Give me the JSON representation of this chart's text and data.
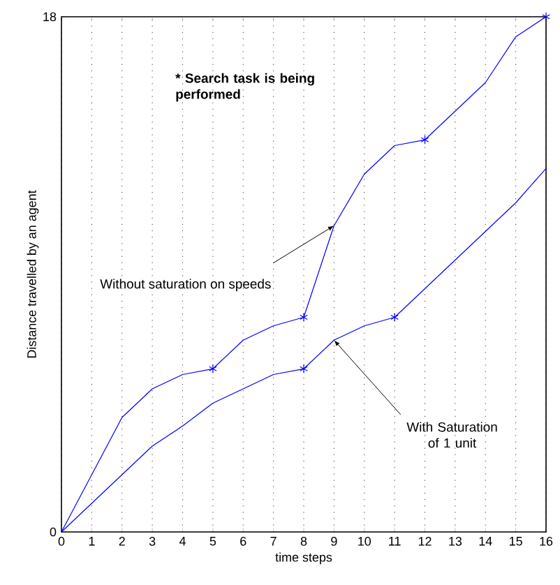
{
  "chart_data": {
    "type": "line",
    "xlabel": "time steps",
    "ylabel": "Distance travelled by an agent",
    "xlim": [
      0,
      16
    ],
    "ylim": [
      0,
      18
    ],
    "xticks": [
      0,
      1,
      2,
      3,
      4,
      5,
      6,
      7,
      8,
      9,
      10,
      11,
      12,
      13,
      14,
      15,
      16
    ],
    "yticks": [
      0,
      18
    ],
    "grid": "x",
    "line_style": "solid",
    "series": [
      {
        "color": "#0000ff",
        "marker": "none",
        "x": [
          0,
          2,
          3,
          4,
          5,
          6,
          7,
          8,
          9,
          10,
          11,
          12,
          14,
          15,
          16
        ],
        "values": [
          0,
          4.0,
          5.0,
          5.5,
          5.7,
          6.7,
          7.2,
          7.5,
          10.7,
          12.5,
          13.5,
          13.7,
          15.7,
          17.3,
          18
        ]
      },
      {
        "color": "#0000ff",
        "marker": "none",
        "x": [
          0,
          2,
          3,
          4,
          5,
          6,
          7,
          8,
          9,
          10,
          11,
          14,
          15,
          16
        ],
        "values": [
          0,
          2.0,
          3.0,
          3.7,
          4.5,
          5.0,
          5.5,
          5.7,
          6.7,
          7.2,
          7.5,
          10.5,
          11.5,
          12.7
        ]
      },
      {
        "type": "scatter",
        "color": "#0000ff",
        "marker": "cross",
        "x": [
          5,
          8,
          12,
          16
        ],
        "values": [
          5.7,
          7.5,
          13.7,
          18
        ]
      },
      {
        "type": "scatter",
        "color": "#0000ff",
        "marker": "cross",
        "x": [
          8,
          11
        ],
        "values": [
          5.7,
          7.5
        ]
      }
    ],
    "annotations": [
      "* Search task is being performed",
      {
        "text": "Without saturation on speeds",
        "x": 9,
        "y": 10.7
      },
      {
        "text": "With Saturation of 1 unit",
        "x": 9,
        "y": 6.7
      }
    ]
  }
}
